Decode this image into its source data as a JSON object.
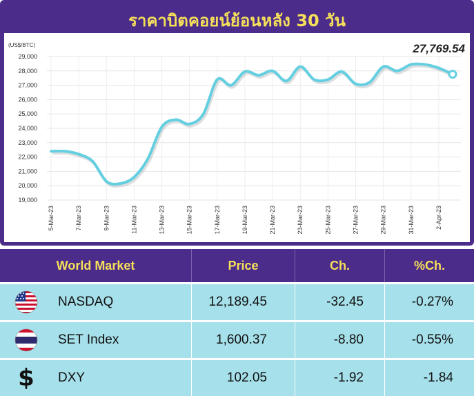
{
  "chart_data": {
    "type": "line",
    "title": "ราคาบิตคอยน์ย้อนหลัง 30 วัน",
    "ylabel": "(US$/BTC)",
    "ylim": [
      19000,
      29000
    ],
    "yticks": [
      "19,000",
      "20,000",
      "21,000",
      "22,000",
      "23,000",
      "24,000",
      "25,000",
      "26,000",
      "27,000",
      "28,000",
      "29,000"
    ],
    "ytick_values": [
      19000,
      20000,
      21000,
      22000,
      23000,
      24000,
      25000,
      26000,
      27000,
      28000,
      29000
    ],
    "xtick_labels": [
      "5-Mar-23",
      "7-Mar-23",
      "9-Mar-23",
      "11-Mar-23",
      "13-Mar-23",
      "15-Mar-23",
      "17-Mar-23",
      "19-Mar-23",
      "21-Mar-23",
      "23-Mar-23",
      "25-Mar-23",
      "27-Mar-23",
      "29-Mar-23",
      "31-Mar-23",
      "2-Apr-23"
    ],
    "x": [
      "5-Mar-23",
      "6-Mar-23",
      "7-Mar-23",
      "8-Mar-23",
      "9-Mar-23",
      "10-Mar-23",
      "11-Mar-23",
      "12-Mar-23",
      "13-Mar-23",
      "14-Mar-23",
      "15-Mar-23",
      "16-Mar-23",
      "17-Mar-23",
      "18-Mar-23",
      "19-Mar-23",
      "20-Mar-23",
      "21-Mar-23",
      "22-Mar-23",
      "23-Mar-23",
      "24-Mar-23",
      "25-Mar-23",
      "26-Mar-23",
      "27-Mar-23",
      "28-Mar-23",
      "29-Mar-23",
      "30-Mar-23",
      "31-Mar-23",
      "1-Apr-23",
      "2-Apr-23",
      "3-Apr-23"
    ],
    "values": [
      22400,
      22400,
      22200,
      21700,
      20300,
      20150,
      20600,
      21900,
      24100,
      24600,
      24300,
      25000,
      27400,
      27000,
      27950,
      27700,
      28000,
      27300,
      28300,
      27400,
      27400,
      27950,
      27100,
      27200,
      28300,
      28000,
      28450,
      28450,
      28200,
      27769.54
    ],
    "last_value_label": "27,769.54",
    "grid": true,
    "line_color": "#63cfe0"
  },
  "table": {
    "headers": [
      "World Market",
      "Price",
      "Ch.",
      "%Ch."
    ],
    "rows": [
      {
        "icon": "us-flag-icon",
        "name": "NASDAQ",
        "price": "12,189.45",
        "change": "-32.45",
        "pct": "-0.27%"
      },
      {
        "icon": "thai-flag-icon",
        "name": "SET Index",
        "price": "1,600.37",
        "change": "-8.80",
        "pct": "-0.55%"
      },
      {
        "icon": "dollar-icon",
        "name": "DXY",
        "price": "102.05",
        "change": "-1.92",
        "pct": "-1.84"
      }
    ]
  },
  "colors": {
    "frame": "#4b2c8a",
    "title": "#f6e05a",
    "row_bg": "#a6e0ea"
  }
}
